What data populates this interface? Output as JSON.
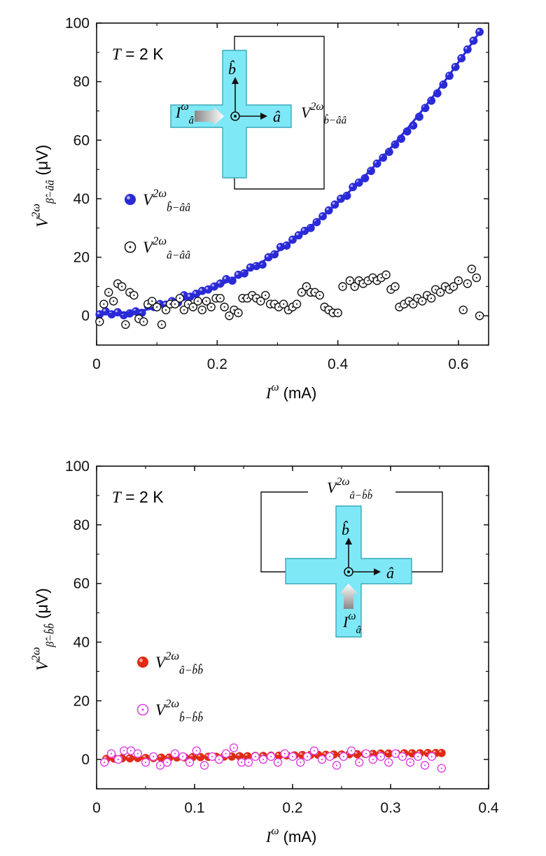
{
  "chart_data": [
    {
      "type": "scatter",
      "xlabel": "I^ω (mA)",
      "ylabel": "V^{2ω}_{β̂−ââ} (μV)",
      "xlim": [
        0,
        0.65
      ],
      "ylim": [
        -10,
        100
      ],
      "xticks": [
        "0",
        "0.2",
        "0.4",
        "0.6"
      ],
      "yticks": [
        "0",
        "20",
        "40",
        "60",
        "80",
        "100"
      ],
      "annotation": "T = 2 K",
      "legend_placement": "middle-left",
      "inset": {
        "current_label": "I^ω_â",
        "voltage_label": "V^{2ω}_{b̂−ââ}",
        "axis_b": "b̂",
        "axis_a": "â"
      },
      "series": [
        {
          "name": "V^{2ω}_{b̂−ââ}",
          "marker": "filled circle",
          "color": "#2a2ad8",
          "x": [
            0.005,
            0.015,
            0.025,
            0.035,
            0.045,
            0.055,
            0.065,
            0.075,
            0.085,
            0.095,
            0.105,
            0.115,
            0.125,
            0.135,
            0.145,
            0.155,
            0.165,
            0.175,
            0.185,
            0.195,
            0.205,
            0.215,
            0.225,
            0.235,
            0.245,
            0.255,
            0.265,
            0.275,
            0.285,
            0.295,
            0.305,
            0.315,
            0.325,
            0.335,
            0.345,
            0.355,
            0.365,
            0.375,
            0.385,
            0.395,
            0.405,
            0.415,
            0.425,
            0.435,
            0.445,
            0.455,
            0.465,
            0.475,
            0.485,
            0.495,
            0.505,
            0.515,
            0.525,
            0.535,
            0.545,
            0.555,
            0.565,
            0.575,
            0.585,
            0.595,
            0.605,
            0.615,
            0.625,
            0.635
          ],
          "values": [
            0.5,
            1.5,
            0.5,
            1.2,
            0.2,
            0.8,
            1.5,
            1.0,
            3.5,
            3.0,
            4.0,
            3.8,
            5.0,
            4.5,
            7.0,
            6.5,
            7.5,
            8.5,
            9.0,
            10.0,
            11.0,
            12.5,
            12.0,
            14.0,
            14.5,
            16.5,
            17.0,
            17.5,
            20.0,
            21.0,
            23.5,
            24.0,
            26.0,
            27.5,
            29.0,
            30.0,
            32.0,
            34.0,
            36.0,
            38.0,
            40.0,
            41.0,
            44.0,
            45.5,
            47.0,
            49.5,
            52.0,
            54.0,
            56.0,
            58.5,
            60.5,
            63.0,
            65.0,
            68.0,
            71.0,
            73.5,
            76.0,
            79.0,
            82.0,
            85.0,
            88.0,
            91.0,
            94.0,
            97.0
          ]
        },
        {
          "name": "V^{2ω}_{â−ââ}",
          "marker": "open circle",
          "color": "#111111",
          "x": [
            0.005,
            0.012,
            0.02,
            0.028,
            0.035,
            0.042,
            0.048,
            0.055,
            0.062,
            0.07,
            0.078,
            0.085,
            0.092,
            0.1,
            0.108,
            0.115,
            0.122,
            0.13,
            0.138,
            0.145,
            0.152,
            0.16,
            0.168,
            0.175,
            0.182,
            0.19,
            0.198,
            0.205,
            0.212,
            0.22,
            0.228,
            0.235,
            0.242,
            0.25,
            0.258,
            0.265,
            0.272,
            0.28,
            0.288,
            0.295,
            0.302,
            0.31,
            0.318,
            0.325,
            0.332,
            0.34,
            0.348,
            0.355,
            0.362,
            0.37,
            0.378,
            0.385,
            0.392,
            0.4,
            0.408,
            0.42,
            0.428,
            0.435,
            0.442,
            0.45,
            0.458,
            0.465,
            0.472,
            0.48,
            0.488,
            0.495,
            0.502,
            0.51,
            0.518,
            0.525,
            0.532,
            0.54,
            0.548,
            0.555,
            0.562,
            0.57,
            0.578,
            0.585,
            0.592,
            0.6,
            0.608,
            0.615,
            0.622,
            0.63,
            0.635
          ],
          "values": [
            -2,
            4,
            8,
            5,
            11,
            10,
            -3,
            8,
            7,
            -1,
            -2,
            4,
            5,
            3,
            -3,
            2,
            4,
            4,
            6,
            2,
            4,
            3,
            5,
            2,
            5,
            3,
            6,
            6,
            3,
            0,
            2,
            1,
            6,
            6,
            7,
            6,
            5,
            7,
            4,
            4,
            3,
            4,
            2,
            3,
            4,
            8,
            10,
            8,
            8,
            7,
            3,
            2,
            1,
            1,
            10,
            12,
            10,
            12,
            11,
            12,
            13,
            12,
            13,
            14,
            9,
            10,
            3,
            4,
            5,
            4,
            6,
            5,
            7,
            6,
            9,
            8,
            10,
            9,
            10,
            12,
            2,
            11,
            16,
            13,
            0
          ]
        }
      ]
    },
    {
      "type": "scatter",
      "xlabel": "I^ω (mA)",
      "ylabel": "V^{2ω}_{β̂−b̂b̂} (μV)",
      "xlim": [
        0,
        0.4
      ],
      "ylim": [
        -10,
        100
      ],
      "xticks": [
        "0",
        "0.1",
        "0.2",
        "0.3",
        "0.4"
      ],
      "yticks": [
        "0",
        "20",
        "40",
        "60",
        "80",
        "100"
      ],
      "annotation": "T = 2 K",
      "legend_placement": "middle-left",
      "inset": {
        "current_label": "I^ω_â",
        "voltage_label": "V^{2ω}_{â−b̂b̂}",
        "axis_b": "b̂",
        "axis_a": "â"
      },
      "series": [
        {
          "name": "V^{2ω}_{â−b̂b̂}",
          "marker": "filled circle",
          "color": "#e02a14",
          "x": [
            0.01,
            0.018,
            0.026,
            0.034,
            0.042,
            0.05,
            0.058,
            0.066,
            0.074,
            0.082,
            0.09,
            0.098,
            0.106,
            0.114,
            0.122,
            0.13,
            0.138,
            0.146,
            0.154,
            0.162,
            0.17,
            0.178,
            0.186,
            0.194,
            0.202,
            0.21,
            0.218,
            0.226,
            0.234,
            0.242,
            0.25,
            0.258,
            0.266,
            0.274,
            0.282,
            0.29,
            0.298,
            0.306,
            0.314,
            0.322,
            0.33,
            0.338,
            0.346,
            0.352
          ],
          "values": [
            0.2,
            0.3,
            0.4,
            0.4,
            0.5,
            0.5,
            0.5,
            0.6,
            0.6,
            0.7,
            0.7,
            0.8,
            0.8,
            0.9,
            0.9,
            1.0,
            1.0,
            1.1,
            1.1,
            1.2,
            1.2,
            1.3,
            1.3,
            1.4,
            1.4,
            1.5,
            1.5,
            1.6,
            1.6,
            1.7,
            1.7,
            1.8,
            1.8,
            1.9,
            1.9,
            2.0,
            2.0,
            2.0,
            2.1,
            2.1,
            2.1,
            2.2,
            2.2,
            2.2
          ]
        },
        {
          "name": "V^{2ω}_{b̂−b̂b̂}",
          "marker": "open circle",
          "color": "#e040e0",
          "x": [
            0.008,
            0.015,
            0.022,
            0.028,
            0.035,
            0.042,
            0.05,
            0.058,
            0.065,
            0.072,
            0.08,
            0.088,
            0.095,
            0.102,
            0.11,
            0.118,
            0.125,
            0.132,
            0.14,
            0.148,
            0.155,
            0.162,
            0.17,
            0.178,
            0.185,
            0.192,
            0.2,
            0.208,
            0.215,
            0.222,
            0.23,
            0.238,
            0.245,
            0.252,
            0.26,
            0.268,
            0.275,
            0.282,
            0.29,
            0.298,
            0.305,
            0.312,
            0.32,
            0.328,
            0.335,
            0.342,
            0.352
          ],
          "values": [
            -1,
            2,
            0,
            3,
            3,
            2,
            -1,
            1,
            -2,
            -1,
            2,
            1,
            -1,
            3,
            -2,
            1,
            0,
            2,
            4,
            -1,
            -1,
            1,
            0,
            1,
            -1,
            2,
            1,
            -1,
            1,
            3,
            0,
            1,
            -2,
            1,
            3,
            -1,
            2,
            0,
            1,
            -1,
            2,
            1,
            -1,
            1,
            -2,
            1,
            -3
          ]
        }
      ]
    }
  ]
}
